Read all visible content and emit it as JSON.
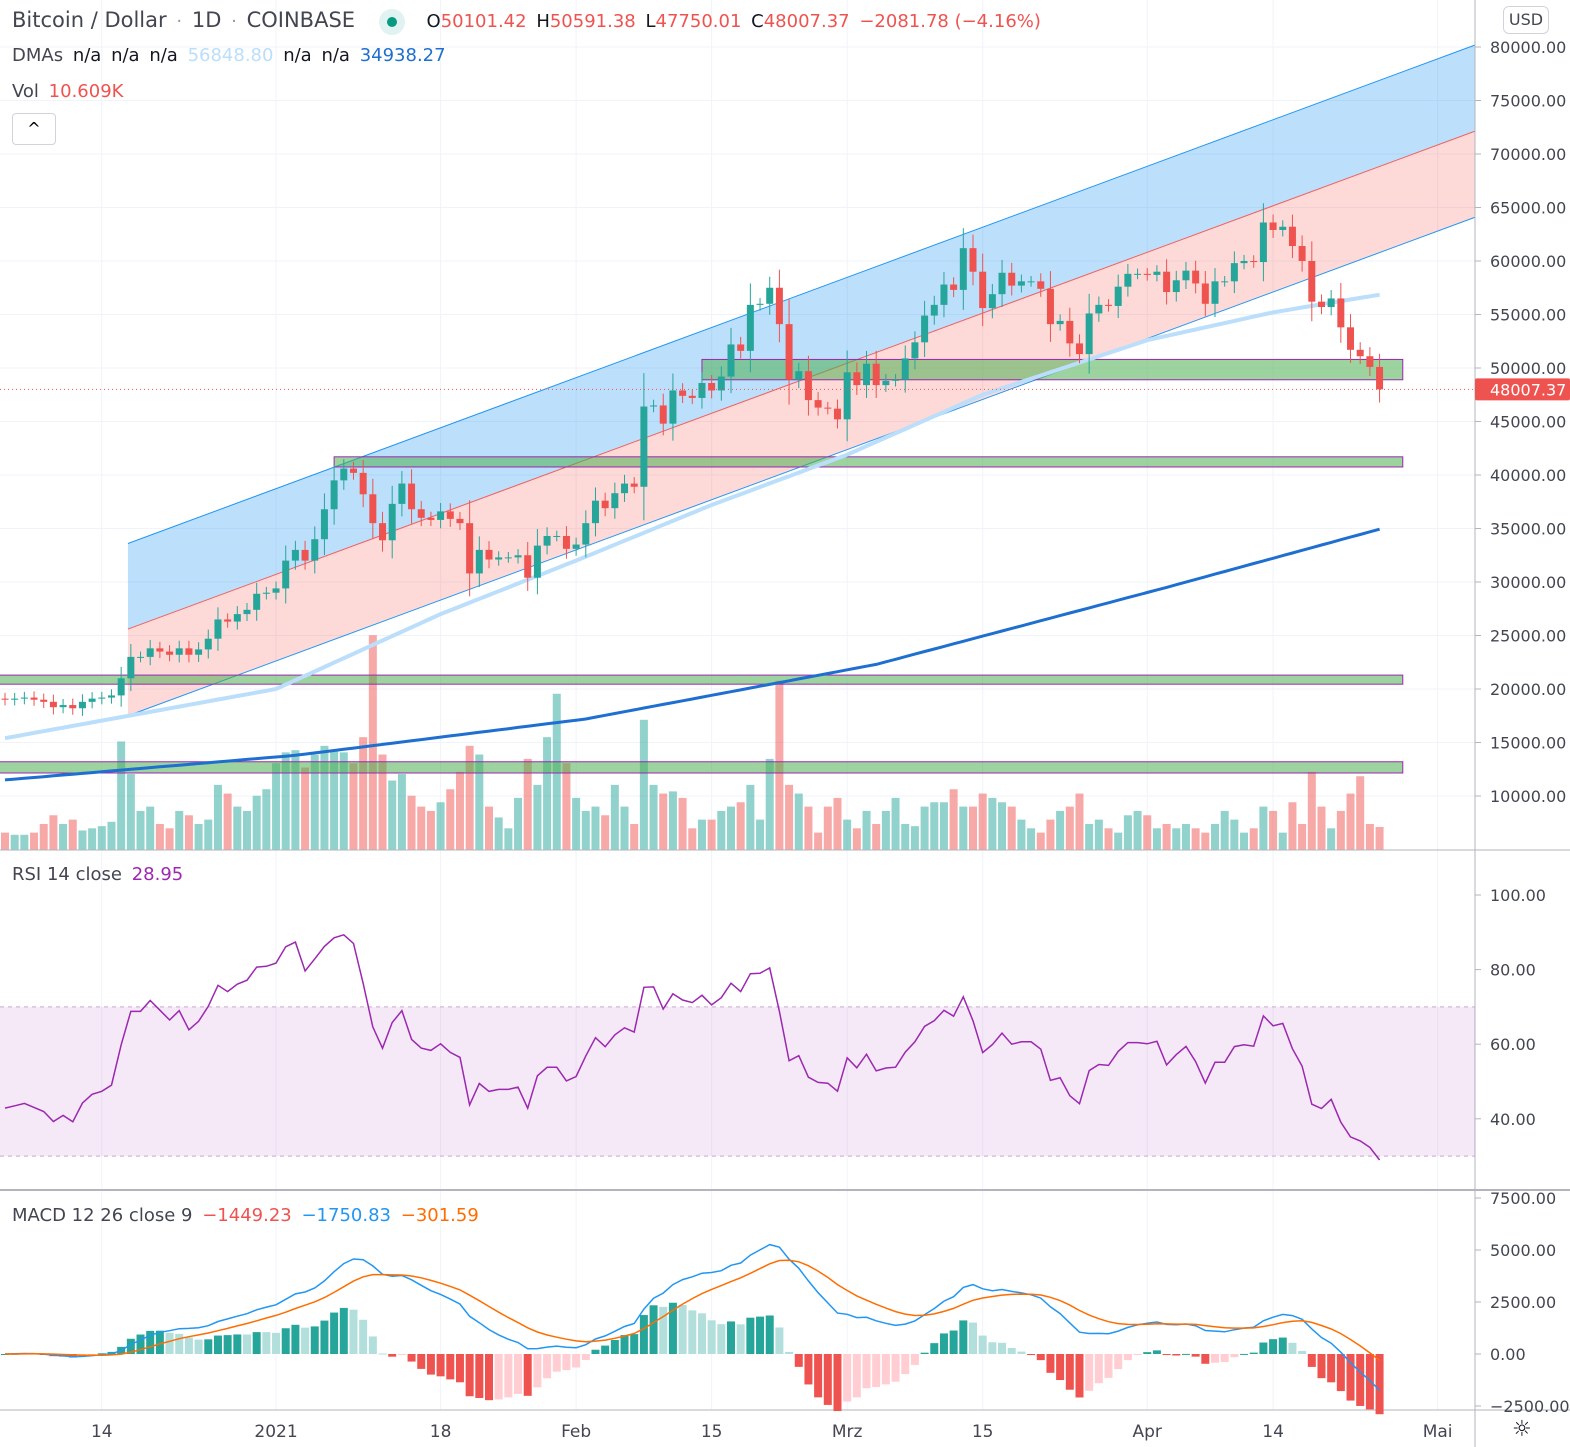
{
  "header": {
    "symbol": "Bitcoin / Dollar",
    "interval": "1D",
    "exchange": "COINBASE",
    "sep": "·",
    "o_label": "O",
    "o": "50101.42",
    "h_label": "H",
    "h": "50591.38",
    "l_label": "L",
    "l": "47750.01",
    "c_label": "C",
    "c": "48007.37",
    "change": "−2081.78 (−4.16%)",
    "dmas_label": "DMAs",
    "dmas": [
      "n/a",
      "n/a",
      "n/a",
      "56848.80",
      "n/a",
      "n/a",
      "34938.27"
    ],
    "vol_label": "Vol",
    "vol": "10.609K",
    "collapse_glyph": "^",
    "currency": "USD",
    "rsi_label": "RSI 14 close",
    "rsi_value": "28.95",
    "macd_label": "MACD 12 26 close 9",
    "macd_values": [
      "−1449.23",
      "−1750.83",
      "−301.59"
    ],
    "settings_glyph": "☼"
  },
  "colors": {
    "up": "#26a69a",
    "down": "#ef5350",
    "ma50": "#bbdefb",
    "ma200": "#1e6fd0",
    "rsi": "#9c27b0",
    "macd": "#2196f3",
    "signal": "#ff6d00"
  },
  "chart_data": [
    {
      "type": "candlestick",
      "title": "Bitcoin / Dollar · 1D · COINBASE",
      "ylim": [
        5000,
        81000
      ],
      "y_ticks": [
        "80000.00",
        "75000.00",
        "70000.00",
        "65000.00",
        "60000.00",
        "55000.00",
        "50000.00",
        "45000.00",
        "40000.00",
        "35000.00",
        "30000.00",
        "25000.00",
        "20000.00",
        "15000.00",
        "10000.00"
      ],
      "last_price_label": "48007.37",
      "last_price": 48007.37,
      "first_open": 19100,
      "closes": [
        19000,
        19100,
        19200,
        19000,
        18800,
        18300,
        18500,
        18200,
        18800,
        19100,
        19200,
        19400,
        21000,
        23000,
        23000,
        23800,
        23500,
        23200,
        23800,
        23200,
        23700,
        24700,
        26500,
        26300,
        27000,
        27400,
        28900,
        29000,
        29400,
        32000,
        33000,
        32000,
        34000,
        36800,
        39500,
        40600,
        40200,
        38200,
        35500,
        33900,
        37300,
        39200,
        36800,
        36000,
        35800,
        36600,
        35900,
        35500,
        30800,
        33000,
        32100,
        32300,
        32300,
        32500,
        30400,
        33400,
        34300,
        34300,
        33100,
        33500,
        35500,
        37600,
        36900,
        38300,
        39200,
        38900,
        46400,
        46500,
        44800,
        47900,
        47400,
        47200,
        48600,
        47900,
        49200,
        52200,
        51600,
        55900,
        56000,
        57500,
        54100,
        48900,
        49700,
        47000,
        46300,
        46200,
        45200,
        49600,
        48400,
        50400,
        48400,
        48800,
        48900,
        50900,
        52400,
        54900,
        55900,
        57800,
        57300,
        61200,
        59000,
        55600,
        56900,
        58900,
        57700,
        58100,
        58100,
        57400,
        54100,
        54400,
        52300,
        51300,
        55100,
        55900,
        55800,
        57600,
        58800,
        58800,
        58700,
        59000,
        57100,
        58200,
        59100,
        57900,
        56000,
        58100,
        58100,
        59800,
        60000,
        59900,
        63600,
        62900,
        63200,
        61400,
        60000,
        56200,
        55700,
        56500,
        53800,
        51700,
        51100,
        50100,
        48007.37
      ],
      "volumes_k": [
        8,
        7,
        7,
        8,
        12,
        16,
        12,
        14,
        9,
        10,
        11,
        13,
        50,
        35,
        18,
        20,
        12,
        10,
        18,
        16,
        12,
        14,
        30,
        26,
        20,
        18,
        25,
        28,
        40,
        45,
        46,
        38,
        44,
        48,
        46,
        45,
        40,
        52,
        99,
        44,
        32,
        35,
        25,
        20,
        18,
        22,
        28,
        36,
        48,
        44,
        20,
        15,
        10,
        24,
        42,
        30,
        52,
        72,
        40,
        24,
        18,
        20,
        16,
        30,
        20,
        12,
        60,
        30,
        26,
        27,
        24,
        10,
        14,
        14,
        18,
        20,
        22,
        30,
        14,
        42,
        78,
        30,
        26,
        20,
        8,
        20,
        24,
        14,
        10,
        18,
        12,
        18,
        24,
        12,
        11,
        20,
        22,
        22,
        28,
        20,
        20,
        26,
        24,
        22,
        20,
        14,
        10,
        8,
        14,
        18,
        20,
        26,
        12,
        14,
        10,
        8,
        16,
        18,
        16,
        10,
        12,
        10,
        12,
        10,
        8,
        12,
        18,
        14,
        8,
        10,
        20,
        18,
        8,
        22,
        12,
        36,
        20,
        10,
        18,
        26,
        34,
        12,
        10.6
      ],
      "ma50": [
        [
          0,
          15400
        ],
        [
          28,
          20000
        ],
        [
          45,
          27000
        ],
        [
          59,
          32000
        ],
        [
          73,
          37200
        ],
        [
          87,
          41900
        ],
        [
          101,
          47500
        ],
        [
          118,
          52600
        ],
        [
          131,
          55200
        ],
        [
          142,
          56848.8
        ]
      ],
      "ma200": [
        [
          0,
          11500
        ],
        [
          30,
          13800
        ],
        [
          60,
          17200
        ],
        [
          90,
          22300
        ],
        [
          120,
          29500
        ],
        [
          142,
          34938.27
        ]
      ],
      "channel": {
        "x0": 12.7,
        "x1": 151.9,
        "top": [
          33600,
          80200
        ],
        "mid": [
          25600,
          72150
        ],
        "bottom": [
          17500,
          64100
        ]
      },
      "zones": [
        {
          "from": 72,
          "hi": 50800,
          "lo": 48900
        },
        {
          "from": 34,
          "hi": 41700,
          "lo": 40750
        },
        {
          "from": -1,
          "hi": 21300,
          "lo": 20450
        },
        {
          "from": -1,
          "hi": 13200,
          "lo": 12150
        }
      ],
      "zones_end": 144.4
    },
    {
      "type": "line",
      "title": "RSI 14 close",
      "ylim": [
        20,
        110
      ],
      "band": [
        30,
        70
      ],
      "y_ticks": [
        "100.00",
        "80.00",
        "60.00",
        "40.00"
      ],
      "tick_values": [
        100,
        80,
        60,
        40
      ]
    },
    {
      "type": "bar+line",
      "title": "MACD 12 26 close 9",
      "y_ticks": [
        "7500.00",
        "5000.00",
        "2500.00",
        "0.00",
        "−2500.00"
      ],
      "tick_values": [
        7500,
        5000,
        2500,
        0,
        -2500
      ]
    },
    {
      "type": "time-axis",
      "labels": [
        {
          "i": 10,
          "t": "14"
        },
        {
          "i": 28,
          "t": "2021"
        },
        {
          "i": 45,
          "t": "18"
        },
        {
          "i": 59,
          "t": "Feb"
        },
        {
          "i": 73,
          "t": "15"
        },
        {
          "i": 87,
          "t": "Mrz"
        },
        {
          "i": 101,
          "t": "15"
        },
        {
          "i": 118,
          "t": "Apr"
        },
        {
          "i": 131,
          "t": "14"
        },
        {
          "i": 148,
          "t": "Mai"
        }
      ]
    }
  ]
}
